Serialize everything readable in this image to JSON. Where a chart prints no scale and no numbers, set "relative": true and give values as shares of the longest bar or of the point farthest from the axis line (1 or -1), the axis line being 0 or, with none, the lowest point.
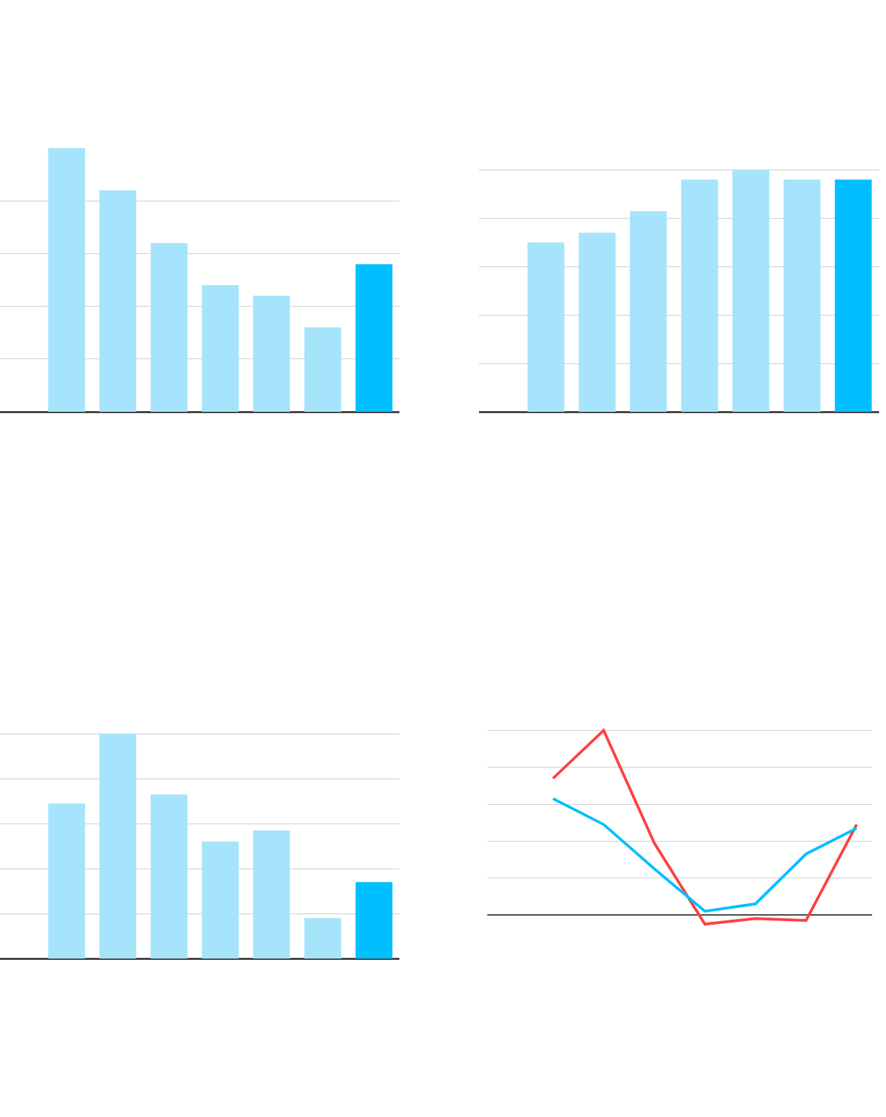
{
  "chart_data": [
    {
      "type": "bar",
      "relative": true,
      "grid": "y",
      "categories": [
        null,
        null,
        null,
        null,
        null,
        null,
        null
      ],
      "values": [
        1,
        0.84,
        0.64,
        0.48,
        0.44,
        0.32,
        0.56
      ],
      "colors": [
        "#a6e4fc",
        "#a6e4fc",
        "#a6e4fc",
        "#a6e4fc",
        "#a6e4fc",
        "#a6e4fc",
        "#00bfff"
      ]
    },
    {
      "type": "bar",
      "relative": true,
      "grid": "y",
      "categories": [
        null,
        null,
        null,
        null,
        null,
        null,
        null
      ],
      "values": [
        0.7,
        0.74,
        0.83,
        0.96,
        1,
        0.96,
        0.96
      ],
      "colors": [
        "#a6e4fc",
        "#a6e4fc",
        "#a6e4fc",
        "#a6e4fc",
        "#a6e4fc",
        "#a6e4fc",
        "#00bfff"
      ]
    },
    {
      "type": "bar",
      "relative": true,
      "grid": "y",
      "categories": [
        null,
        null,
        null,
        null,
        null,
        null,
        null
      ],
      "values": [
        0.69,
        1,
        0.73,
        0.52,
        0.57,
        0.18,
        0.34
      ],
      "colors": [
        "#a6e4fc",
        "#a6e4fc",
        "#a6e4fc",
        "#a6e4fc",
        "#a6e4fc",
        "#a6e4fc",
        "#00bfff"
      ]
    },
    {
      "type": "line",
      "relative": true,
      "grid": "y",
      "marker": "none",
      "line_style": "solid",
      "categories": [
        null,
        null,
        null,
        null,
        null,
        null,
        null
      ],
      "series": [
        {
          "color": "#ff4040",
          "values": [
            0.74,
            1,
            0.39,
            -0.05,
            -0.02,
            -0.03,
            0.49
          ]
        },
        {
          "color": "#00bfff",
          "values": [
            0.63,
            0.49,
            0.25,
            0.02,
            0.06,
            0.33,
            0.47
          ]
        }
      ]
    }
  ]
}
